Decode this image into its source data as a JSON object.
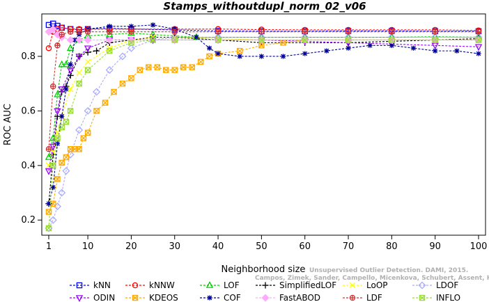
{
  "chart_data": {
    "type": "line",
    "title": "Stamps_withoutdupl_norm_02_v06",
    "xlabel": "Neighborhood size",
    "ylabel": "ROC AUC",
    "xlim": [
      1,
      100
    ],
    "ylim": [
      0.17,
      0.93
    ],
    "x_ticks": [
      1,
      10,
      20,
      30,
      40,
      50,
      60,
      70,
      80,
      90,
      100
    ],
    "y_ticks": [
      0.2,
      0.4,
      0.6,
      0.8
    ],
    "grid": false,
    "legend_position": "bottom",
    "watermark": [
      "Unsupervised Outlier Detection. DAMI, 2015.",
      "Campos, Zimek, Sander, Campello, Micenkova, Schubert, Assent, Houle"
    ],
    "series": [
      {
        "name": "kNN",
        "color": "#0000ff",
        "marker": "square",
        "points": [
          [
            1,
            0.915
          ],
          [
            2,
            0.92
          ],
          [
            3,
            0.912
          ],
          [
            4,
            0.905
          ],
          [
            6,
            0.9
          ],
          [
            8,
            0.897
          ],
          [
            10,
            0.9
          ],
          [
            15,
            0.903
          ],
          [
            20,
            0.9
          ],
          [
            30,
            0.897
          ],
          [
            40,
            0.893
          ],
          [
            50,
            0.892
          ],
          [
            60,
            0.892
          ],
          [
            70,
            0.893
          ],
          [
            80,
            0.893
          ],
          [
            90,
            0.892
          ],
          [
            100,
            0.892
          ]
        ]
      },
      {
        "name": "kNNW",
        "color": "#ff0000",
        "marker": "circle",
        "points": [
          [
            1,
            0.83
          ],
          [
            2,
            0.89
          ],
          [
            3,
            0.9
          ],
          [
            4,
            0.905
          ],
          [
            6,
            0.9
          ],
          [
            8,
            0.9
          ],
          [
            10,
            0.9
          ],
          [
            15,
            0.9
          ],
          [
            20,
            0.9
          ],
          [
            30,
            0.9
          ],
          [
            40,
            0.9
          ],
          [
            50,
            0.898
          ],
          [
            60,
            0.897
          ],
          [
            70,
            0.897
          ],
          [
            80,
            0.897
          ],
          [
            90,
            0.897
          ],
          [
            100,
            0.895
          ]
        ]
      },
      {
        "name": "LOF",
        "color": "#00cc00",
        "marker": "triangle-up",
        "points": [
          [
            1,
            0.43
          ],
          [
            2,
            0.5
          ],
          [
            3,
            0.66
          ],
          [
            4,
            0.77
          ],
          [
            5,
            0.77
          ],
          [
            6,
            0.83
          ],
          [
            8,
            0.86
          ],
          [
            10,
            0.875
          ],
          [
            15,
            0.88
          ],
          [
            20,
            0.885
          ],
          [
            25,
            0.88
          ],
          [
            30,
            0.875
          ],
          [
            35,
            0.87
          ],
          [
            40,
            0.87
          ],
          [
            50,
            0.87
          ],
          [
            60,
            0.87
          ],
          [
            70,
            0.87
          ],
          [
            80,
            0.87
          ],
          [
            90,
            0.872
          ],
          [
            100,
            0.87
          ]
        ]
      },
      {
        "name": "SimplifiedLOF",
        "color": "#000000",
        "marker": "plus",
        "points": [
          [
            1,
            0.26
          ],
          [
            2,
            0.44
          ],
          [
            3,
            0.58
          ],
          [
            4,
            0.67
          ],
          [
            5,
            0.69
          ],
          [
            6,
            0.73
          ],
          [
            8,
            0.8
          ],
          [
            10,
            0.815
          ],
          [
            12,
            0.82
          ],
          [
            15,
            0.85
          ],
          [
            20,
            0.86
          ],
          [
            25,
            0.87
          ],
          [
            30,
            0.87
          ],
          [
            40,
            0.86
          ],
          [
            50,
            0.85
          ],
          [
            60,
            0.85
          ],
          [
            70,
            0.85
          ],
          [
            80,
            0.855
          ],
          [
            90,
            0.86
          ],
          [
            100,
            0.865
          ]
        ]
      },
      {
        "name": "LoOP",
        "color": "#ffff00",
        "marker": "x",
        "points": [
          [
            1,
            0.4
          ],
          [
            2,
            0.45
          ],
          [
            3,
            0.52
          ],
          [
            4,
            0.58
          ],
          [
            6,
            0.68
          ],
          [
            8,
            0.74
          ],
          [
            10,
            0.78
          ],
          [
            15,
            0.83
          ],
          [
            20,
            0.86
          ],
          [
            25,
            0.87
          ],
          [
            30,
            0.87
          ],
          [
            40,
            0.865
          ],
          [
            50,
            0.86
          ],
          [
            60,
            0.86
          ],
          [
            70,
            0.86
          ],
          [
            80,
            0.86
          ],
          [
            90,
            0.86
          ],
          [
            100,
            0.86
          ]
        ]
      },
      {
        "name": "LDOF",
        "color": "#aaaaff",
        "marker": "diamond",
        "points": [
          [
            1,
            0.17
          ],
          [
            2,
            0.2
          ],
          [
            3,
            0.25
          ],
          [
            4,
            0.3
          ],
          [
            5,
            0.38
          ],
          [
            6,
            0.44
          ],
          [
            8,
            0.53
          ],
          [
            10,
            0.6
          ],
          [
            12,
            0.67
          ],
          [
            15,
            0.75
          ],
          [
            18,
            0.8
          ],
          [
            20,
            0.83
          ],
          [
            25,
            0.86
          ],
          [
            30,
            0.87
          ],
          [
            40,
            0.87
          ],
          [
            50,
            0.87
          ],
          [
            60,
            0.87
          ],
          [
            70,
            0.87
          ],
          [
            80,
            0.87
          ],
          [
            90,
            0.87
          ],
          [
            100,
            0.87
          ]
        ]
      },
      {
        "name": "ODIN",
        "color": "#9900ff",
        "marker": "triangle-down",
        "points": [
          [
            1,
            0.38
          ],
          [
            2,
            0.47
          ],
          [
            3,
            0.6
          ],
          [
            4,
            0.68
          ],
          [
            6,
            0.75
          ],
          [
            8,
            0.8
          ],
          [
            10,
            0.83
          ],
          [
            15,
            0.86
          ],
          [
            20,
            0.86
          ],
          [
            25,
            0.86
          ],
          [
            30,
            0.86
          ],
          [
            40,
            0.86
          ],
          [
            50,
            0.86
          ],
          [
            60,
            0.855
          ],
          [
            70,
            0.85
          ],
          [
            80,
            0.845
          ],
          [
            90,
            0.84
          ],
          [
            100,
            0.835
          ]
        ]
      },
      {
        "name": "KDEOS",
        "color": "#ffaa00",
        "marker": "square-x",
        "points": [
          [
            1,
            0.23
          ],
          [
            2,
            0.26
          ],
          [
            3,
            0.35
          ],
          [
            4,
            0.41
          ],
          [
            5,
            0.43
          ],
          [
            6,
            0.46
          ],
          [
            7,
            0.46
          ],
          [
            8,
            0.46
          ],
          [
            9,
            0.5
          ],
          [
            10,
            0.52
          ],
          [
            12,
            0.6
          ],
          [
            14,
            0.63
          ],
          [
            16,
            0.67
          ],
          [
            18,
            0.7
          ],
          [
            20,
            0.72
          ],
          [
            22,
            0.75
          ],
          [
            24,
            0.76
          ],
          [
            26,
            0.76
          ],
          [
            28,
            0.75
          ],
          [
            30,
            0.75
          ],
          [
            32,
            0.76
          ],
          [
            34,
            0.76
          ],
          [
            36,
            0.78
          ],
          [
            38,
            0.8
          ],
          [
            40,
            0.81
          ],
          [
            45,
            0.82
          ],
          [
            50,
            0.84
          ],
          [
            55,
            0.85
          ],
          [
            60,
            0.86
          ],
          [
            70,
            0.86
          ],
          [
            80,
            0.86
          ],
          [
            90,
            0.86
          ],
          [
            100,
            0.86
          ]
        ]
      },
      {
        "name": "COF",
        "color": "#000099",
        "marker": "star",
        "points": [
          [
            1,
            0.26
          ],
          [
            2,
            0.32
          ],
          [
            3,
            0.48
          ],
          [
            4,
            0.58
          ],
          [
            5,
            0.68
          ],
          [
            6,
            0.77
          ],
          [
            7,
            0.86
          ],
          [
            8,
            0.88
          ],
          [
            10,
            0.9
          ],
          [
            15,
            0.91
          ],
          [
            20,
            0.91
          ],
          [
            25,
            0.915
          ],
          [
            30,
            0.9
          ],
          [
            35,
            0.87
          ],
          [
            38,
            0.83
          ],
          [
            40,
            0.81
          ],
          [
            45,
            0.8
          ],
          [
            50,
            0.8
          ],
          [
            55,
            0.8
          ],
          [
            60,
            0.81
          ],
          [
            65,
            0.82
          ],
          [
            70,
            0.83
          ],
          [
            75,
            0.84
          ],
          [
            80,
            0.84
          ],
          [
            85,
            0.83
          ],
          [
            90,
            0.82
          ],
          [
            95,
            0.82
          ],
          [
            100,
            0.81
          ]
        ]
      },
      {
        "name": "FastABOD",
        "color": "#ffaaff",
        "marker": "diamond-filled",
        "points": [
          [
            1,
            0.89
          ],
          [
            2,
            0.9
          ],
          [
            3,
            0.88
          ],
          [
            4,
            0.87
          ],
          [
            6,
            0.86
          ],
          [
            8,
            0.86
          ],
          [
            10,
            0.86
          ],
          [
            15,
            0.86
          ],
          [
            20,
            0.86
          ],
          [
            30,
            0.86
          ],
          [
            40,
            0.86
          ],
          [
            50,
            0.86
          ],
          [
            60,
            0.86
          ],
          [
            70,
            0.86
          ],
          [
            80,
            0.86
          ],
          [
            90,
            0.86
          ],
          [
            100,
            0.86
          ]
        ]
      },
      {
        "name": "LDF",
        "color": "#cc3333",
        "marker": "circle-plus",
        "points": [
          [
            1,
            0.46
          ],
          [
            2,
            0.69
          ],
          [
            3,
            0.84
          ],
          [
            4,
            0.88
          ],
          [
            6,
            0.89
          ],
          [
            8,
            0.89
          ],
          [
            10,
            0.89
          ],
          [
            15,
            0.89
          ],
          [
            20,
            0.89
          ],
          [
            30,
            0.89
          ],
          [
            40,
            0.89
          ],
          [
            50,
            0.89
          ],
          [
            60,
            0.89
          ],
          [
            70,
            0.89
          ],
          [
            80,
            0.89
          ],
          [
            90,
            0.89
          ],
          [
            100,
            0.89
          ]
        ]
      },
      {
        "name": "INFLO",
        "color": "#99dd33",
        "marker": "square-x",
        "points": [
          [
            1,
            0.17
          ],
          [
            2,
            0.4
          ],
          [
            3,
            0.5
          ],
          [
            4,
            0.54
          ],
          [
            5,
            0.56
          ],
          [
            6,
            0.6
          ],
          [
            8,
            0.7
          ],
          [
            10,
            0.75
          ],
          [
            15,
            0.82
          ],
          [
            20,
            0.85
          ],
          [
            25,
            0.86
          ],
          [
            30,
            0.86
          ],
          [
            40,
            0.86
          ],
          [
            50,
            0.86
          ],
          [
            60,
            0.86
          ],
          [
            70,
            0.86
          ],
          [
            80,
            0.86
          ],
          [
            90,
            0.86
          ],
          [
            100,
            0.86
          ]
        ]
      }
    ]
  }
}
